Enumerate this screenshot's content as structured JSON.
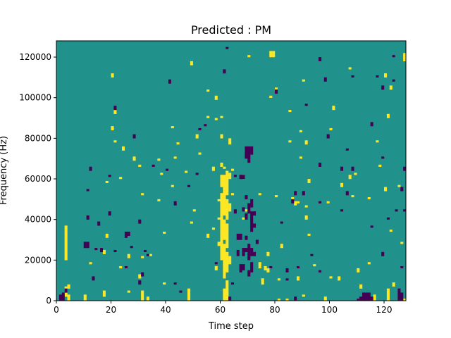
{
  "chart_data": {
    "type": "heatmap",
    "title": "Predicted : PM",
    "xlabel": "Time step",
    "ylabel": "Frequency (Hz)",
    "xlim": [
      0,
      128
    ],
    "ylim": [
      0,
      128000
    ],
    "x_ticks": [
      0,
      20,
      40,
      60,
      80,
      100,
      120
    ],
    "x_tick_labels": [
      "0",
      "20",
      "40",
      "60",
      "80",
      "100",
      "120"
    ],
    "y_ticks": [
      0,
      20000,
      40000,
      60000,
      80000,
      100000,
      120000
    ],
    "y_tick_labels": [
      "0",
      "20000",
      "40000",
      "60000",
      "80000",
      "100000",
      "120000"
    ],
    "rows": 128,
    "cols": 128,
    "colors": {
      "low": "#440154",
      "mid": "#21918c",
      "high": "#fde725",
      "background": "#21918c"
    },
    "default_value": 0,
    "high_cells": [
      [
        3,
        2,
        5
      ],
      [
        3,
        20,
        17
      ],
      [
        4,
        0,
        3
      ],
      [
        4,
        6,
        2
      ],
      [
        10,
        0,
        3
      ],
      [
        12,
        18,
        1
      ],
      [
        17,
        2,
        3
      ],
      [
        17,
        23,
        2
      ],
      [
        18,
        31,
        2
      ],
      [
        18,
        58,
        1
      ],
      [
        20,
        84,
        2
      ],
      [
        20,
        110,
        2
      ],
      [
        21,
        78,
        1
      ],
      [
        21,
        92,
        2
      ],
      [
        23,
        60,
        1
      ],
      [
        23,
        16,
        1
      ],
      [
        24,
        74,
        2
      ],
      [
        26,
        4,
        1
      ],
      [
        26,
        21,
        2
      ],
      [
        28,
        69,
        2
      ],
      [
        30,
        66,
        1
      ],
      [
        30,
        11,
        2
      ],
      [
        31,
        0,
        5
      ],
      [
        31,
        52,
        1
      ],
      [
        31,
        21,
        1
      ],
      [
        33,
        0,
        2
      ],
      [
        34,
        22,
        1
      ],
      [
        37,
        49,
        1
      ],
      [
        37,
        69,
        1
      ],
      [
        38,
        62,
        1
      ],
      [
        39,
        8,
        1
      ],
      [
        39,
        33,
        1
      ],
      [
        42,
        85,
        1
      ],
      [
        42,
        56,
        1
      ],
      [
        43,
        70,
        1
      ],
      [
        44,
        77,
        1
      ],
      [
        47,
        63,
        1
      ],
      [
        48,
        0,
        6
      ],
      [
        49,
        38,
        1
      ],
      [
        49,
        116,
        2
      ],
      [
        50,
        44,
        1
      ],
      [
        51,
        80,
        2
      ],
      [
        52,
        72,
        1
      ],
      [
        55,
        103,
        1
      ],
      [
        55,
        90,
        1
      ],
      [
        55,
        31,
        2
      ],
      [
        57,
        64,
        2
      ],
      [
        57,
        35,
        1
      ],
      [
        58,
        89,
        1
      ],
      [
        58,
        99,
        2
      ],
      [
        58,
        15,
        2
      ],
      [
        59,
        40,
        1
      ],
      [
        59,
        49,
        1
      ],
      [
        59,
        27,
        2
      ],
      [
        60,
        20,
        14
      ],
      [
        60,
        33,
        20
      ],
      [
        60,
        56,
        6
      ],
      [
        60,
        66,
        2
      ],
      [
        60,
        80,
        2
      ],
      [
        60,
        90,
        1
      ],
      [
        61,
        0,
        6
      ],
      [
        61,
        11,
        17
      ],
      [
        61,
        30,
        10
      ],
      [
        61,
        42,
        20
      ],
      [
        61,
        65,
        1
      ],
      [
        62,
        0,
        10
      ],
      [
        62,
        14,
        10
      ],
      [
        62,
        26,
        12
      ],
      [
        62,
        40,
        10
      ],
      [
        62,
        52,
        12
      ],
      [
        63,
        18,
        4
      ],
      [
        63,
        44,
        4
      ],
      [
        63,
        60,
        3
      ],
      [
        63,
        77,
        3
      ],
      [
        64,
        64,
        1
      ],
      [
        64,
        52,
        1
      ],
      [
        68,
        40,
        1
      ],
      [
        68,
        60,
        2
      ],
      [
        69,
        73,
        2
      ],
      [
        69,
        44,
        1
      ],
      [
        70,
        72,
        1
      ],
      [
        70,
        120,
        1
      ],
      [
        74,
        16,
        3
      ],
      [
        74,
        52,
        1
      ],
      [
        75,
        8,
        3
      ],
      [
        76,
        15,
        2
      ],
      [
        77,
        14,
        2
      ],
      [
        77,
        22,
        2
      ],
      [
        78,
        120,
        3
      ],
      [
        78,
        100,
        1
      ],
      [
        79,
        120,
        3
      ],
      [
        80,
        104,
        1
      ],
      [
        80,
        51,
        1
      ],
      [
        81,
        0,
        1
      ],
      [
        81,
        10,
        1
      ],
      [
        82,
        26,
        2
      ],
      [
        84,
        0,
        1
      ],
      [
        85,
        93,
        1
      ],
      [
        85,
        78,
        1
      ],
      [
        86,
        50,
        1
      ],
      [
        87,
        47,
        2
      ],
      [
        88,
        10,
        2
      ],
      [
        88,
        48,
        1
      ],
      [
        89,
        83,
        1
      ],
      [
        89,
        70,
        1
      ],
      [
        90,
        2,
        1
      ],
      [
        90,
        108,
        1
      ],
      [
        91,
        77,
        2
      ],
      [
        91,
        46,
        1
      ],
      [
        91,
        40,
        2
      ],
      [
        92,
        58,
        2
      ],
      [
        92,
        32,
        1
      ],
      [
        94,
        17,
        1
      ],
      [
        98,
        0,
        2
      ],
      [
        99,
        48,
        1
      ],
      [
        100,
        84,
        1
      ],
      [
        100,
        11,
        1
      ],
      [
        101,
        94,
        2
      ],
      [
        103,
        10,
        2
      ],
      [
        104,
        56,
        2
      ],
      [
        107,
        114,
        1
      ],
      [
        107,
        60,
        2
      ],
      [
        108,
        51,
        1
      ],
      [
        109,
        62,
        1
      ],
      [
        110,
        14,
        2
      ],
      [
        111,
        6,
        2
      ],
      [
        114,
        18,
        1
      ],
      [
        114,
        50,
        1
      ],
      [
        115,
        0,
        1
      ],
      [
        116,
        0,
        3
      ],
      [
        117,
        78,
        1
      ],
      [
        118,
        66,
        1
      ],
      [
        120,
        110,
        2
      ],
      [
        120,
        54,
        2
      ],
      [
        121,
        0,
        6
      ],
      [
        121,
        90,
        2
      ],
      [
        122,
        104,
        2
      ],
      [
        122,
        34,
        1
      ],
      [
        123,
        7,
        2
      ],
      [
        125,
        56,
        1
      ],
      [
        126,
        28,
        1
      ],
      [
        127,
        118,
        4
      ],
      [
        127,
        0,
        1
      ]
    ],
    "low_cells": [
      [
        1,
        0,
        3
      ],
      [
        2,
        0,
        4
      ],
      [
        3,
        4,
        2
      ],
      [
        10,
        26,
        3
      ],
      [
        11,
        26,
        3
      ],
      [
        11,
        40,
        2
      ],
      [
        11,
        54,
        1
      ],
      [
        12,
        64,
        2
      ],
      [
        13,
        10,
        2
      ],
      [
        14,
        25,
        1
      ],
      [
        15,
        37,
        2
      ],
      [
        16,
        24,
        2
      ],
      [
        19,
        61,
        1
      ],
      [
        19,
        42,
        2
      ],
      [
        21,
        94,
        2
      ],
      [
        21,
        24,
        1
      ],
      [
        25,
        16,
        1
      ],
      [
        25,
        31,
        3
      ],
      [
        26,
        32,
        2
      ],
      [
        27,
        26,
        1
      ],
      [
        28,
        80,
        2
      ],
      [
        30,
        8,
        2
      ],
      [
        30,
        38,
        2
      ],
      [
        31,
        12,
        2
      ],
      [
        32,
        24,
        1
      ],
      [
        33,
        22,
        1
      ],
      [
        35,
        66,
        1
      ],
      [
        40,
        64,
        1
      ],
      [
        41,
        107,
        2
      ],
      [
        43,
        8,
        1
      ],
      [
        43,
        47,
        2
      ],
      [
        45,
        4,
        1
      ],
      [
        48,
        56,
        1
      ],
      [
        51,
        62,
        1
      ],
      [
        52,
        84,
        1
      ],
      [
        54,
        86,
        1
      ],
      [
        58,
        18,
        1
      ],
      [
        61,
        112,
        2
      ],
      [
        63,
        0,
        2
      ],
      [
        62,
        124,
        1
      ],
      [
        64,
        8,
        1
      ],
      [
        65,
        43,
        2
      ],
      [
        65,
        61,
        1
      ],
      [
        66,
        30,
        3
      ],
      [
        66,
        22,
        3
      ],
      [
        67,
        30,
        3
      ],
      [
        67,
        14,
        4
      ],
      [
        67,
        60,
        2
      ],
      [
        68,
        22,
        4
      ],
      [
        68,
        15,
        3
      ],
      [
        68,
        44,
        2
      ],
      [
        68,
        60,
        2
      ],
      [
        69,
        24,
        2
      ],
      [
        69,
        30,
        2
      ],
      [
        69,
        70,
        6
      ],
      [
        69,
        50,
        2
      ],
      [
        69,
        40,
        3
      ],
      [
        70,
        43,
        5
      ],
      [
        70,
        20,
        8
      ],
      [
        70,
        12,
        3
      ],
      [
        70,
        68,
        8
      ],
      [
        71,
        14,
        5
      ],
      [
        71,
        34,
        10
      ],
      [
        71,
        46,
        4
      ],
      [
        71,
        22,
        4
      ],
      [
        71,
        72,
        4
      ],
      [
        72,
        22,
        2
      ],
      [
        72,
        42,
        2
      ],
      [
        72,
        36,
        2
      ],
      [
        73,
        28,
        2
      ],
      [
        78,
        16,
        1
      ],
      [
        80,
        102,
        2
      ],
      [
        82,
        38,
        1
      ],
      [
        84,
        14,
        2
      ],
      [
        84,
        10,
        1
      ],
      [
        86,
        48,
        2
      ],
      [
        87,
        0,
        2
      ],
      [
        87,
        52,
        2
      ],
      [
        88,
        16,
        1
      ],
      [
        90,
        52,
        2
      ],
      [
        91,
        96,
        1
      ],
      [
        93,
        22,
        1
      ],
      [
        96,
        14,
        1
      ],
      [
        96,
        48,
        1
      ],
      [
        96,
        66,
        2
      ],
      [
        96,
        118,
        2
      ],
      [
        98,
        108,
        2
      ],
      [
        99,
        80,
        2
      ],
      [
        104,
        44,
        1
      ],
      [
        104,
        64,
        2
      ],
      [
        106,
        52,
        2
      ],
      [
        106,
        74,
        1
      ],
      [
        108,
        64,
        2
      ],
      [
        108,
        110,
        1
      ],
      [
        110,
        0,
        1
      ],
      [
        111,
        0,
        2
      ],
      [
        112,
        0,
        4
      ],
      [
        113,
        0,
        4
      ],
      [
        114,
        0,
        4
      ],
      [
        115,
        0,
        2
      ],
      [
        115,
        36,
        1
      ],
      [
        115,
        86,
        2
      ],
      [
        117,
        110,
        1
      ],
      [
        119,
        22,
        2
      ],
      [
        119,
        104,
        2
      ],
      [
        119,
        70,
        1
      ],
      [
        121,
        40,
        1
      ],
      [
        123,
        108,
        1
      ],
      [
        123,
        120,
        1
      ],
      [
        124,
        44,
        1
      ],
      [
        125,
        0,
        6
      ],
      [
        126,
        0,
        4
      ],
      [
        126,
        54,
        2
      ],
      [
        126,
        16,
        1
      ],
      [
        127,
        64,
        2
      ],
      [
        127,
        44,
        1
      ]
    ]
  }
}
